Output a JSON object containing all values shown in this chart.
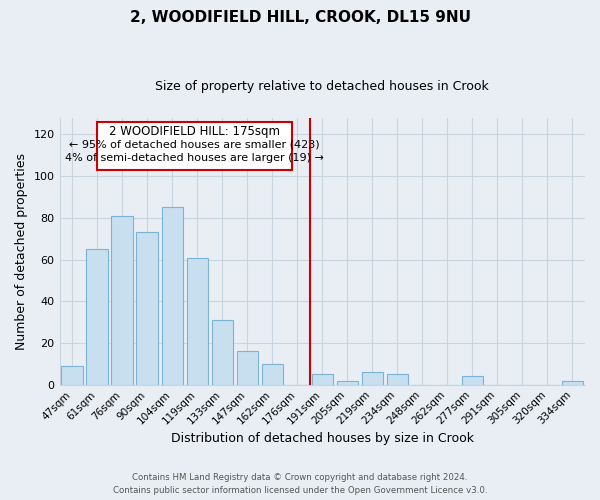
{
  "title": "2, WOODIFIELD HILL, CROOK, DL15 9NU",
  "subtitle": "Size of property relative to detached houses in Crook",
  "xlabel": "Distribution of detached houses by size in Crook",
  "ylabel": "Number of detached properties",
  "bar_labels": [
    "47sqm",
    "61sqm",
    "76sqm",
    "90sqm",
    "104sqm",
    "119sqm",
    "133sqm",
    "147sqm",
    "162sqm",
    "176sqm",
    "191sqm",
    "205sqm",
    "219sqm",
    "234sqm",
    "248sqm",
    "262sqm",
    "277sqm",
    "291sqm",
    "305sqm",
    "320sqm",
    "334sqm"
  ],
  "bar_values": [
    9,
    65,
    81,
    73,
    85,
    61,
    31,
    16,
    10,
    0,
    5,
    2,
    6,
    5,
    0,
    0,
    4,
    0,
    0,
    0,
    2
  ],
  "bar_color": "#c8dff0",
  "bar_edge_color": "#7ab3d4",
  "vline_index": 9,
  "vline_color": "#cc0000",
  "ylim": [
    0,
    128
  ],
  "yticks": [
    0,
    20,
    40,
    60,
    80,
    100,
    120
  ],
  "annotation_title": "2 WOODIFIELD HILL: 175sqm",
  "annotation_line1": "← 95% of detached houses are smaller (423)",
  "annotation_line2": "4% of semi-detached houses are larger (19) →",
  "footer_line1": "Contains HM Land Registry data © Crown copyright and database right 2024.",
  "footer_line2": "Contains public sector information licensed under the Open Government Licence v3.0.",
  "background_color": "#e8eef4",
  "plot_bg_color": "#e8eef4",
  "grid_color": "#c8d4de"
}
